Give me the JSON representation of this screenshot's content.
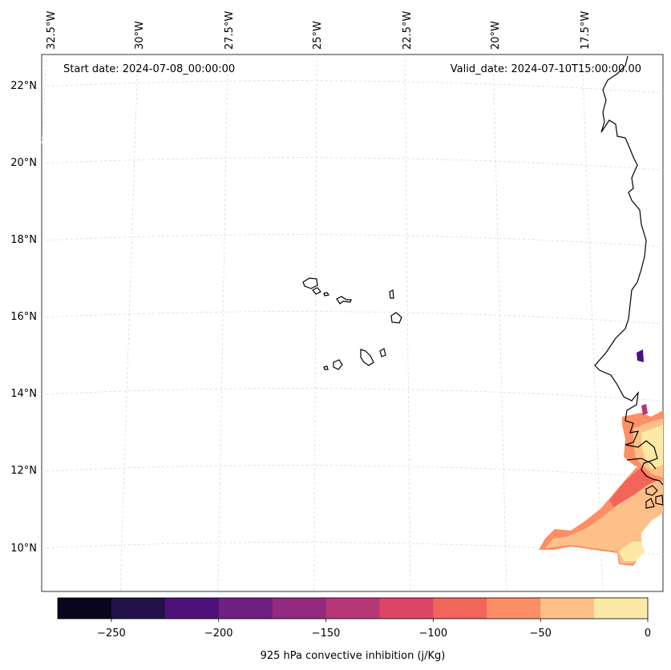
{
  "map": {
    "projection": "conic",
    "lon_range": [
      -33.0,
      -15.5
    ],
    "lat_range": [
      9.0,
      22.5
    ],
    "top_labels": [
      "32.5°W",
      "30°W",
      "27.5°W",
      "25°W",
      "22.5°W",
      "20°W",
      "17.5°W"
    ],
    "left_labels": [
      "22°N",
      "20°N",
      "18°N",
      "16°N",
      "14°N",
      "12°N",
      "10°N"
    ],
    "grid_lons": [
      -32.5,
      -30,
      -27.5,
      -25,
      -22.5,
      -20,
      -17.5
    ],
    "grid_lats": [
      22,
      20,
      18,
      16,
      14,
      12,
      10
    ]
  },
  "annotations": {
    "start_date": "Start date: 2024-07-08_00:00:00",
    "valid_date": "Valid_date: 2024-07-10T15:00:00.00"
  },
  "colorbar": {
    "label": "925 hPa convective inhibition (j/Kg)",
    "ticks": [
      "−250",
      "−200",
      "−150",
      "−100",
      "−50",
      "0"
    ],
    "tick_values": [
      -250,
      -200,
      -150,
      -100,
      -50,
      0
    ],
    "range": [
      -275,
      0
    ],
    "colors": [
      "#07061c",
      "#221249",
      "#4e117a",
      "#6f1f80",
      "#932a7f",
      "#b73779",
      "#dc4664",
      "#f3645a",
      "#fd8e65",
      "#fec088",
      "#fde9a6"
    ]
  },
  "colors": {
    "grid": "#d3d3d3",
    "coastline": "#000000",
    "fill_light": "#fde9a6",
    "fill_mid": "#fec088",
    "fill_orange": "#fd8e65",
    "fill_red": "#f3645a",
    "fill_dark": "#4e117a"
  }
}
